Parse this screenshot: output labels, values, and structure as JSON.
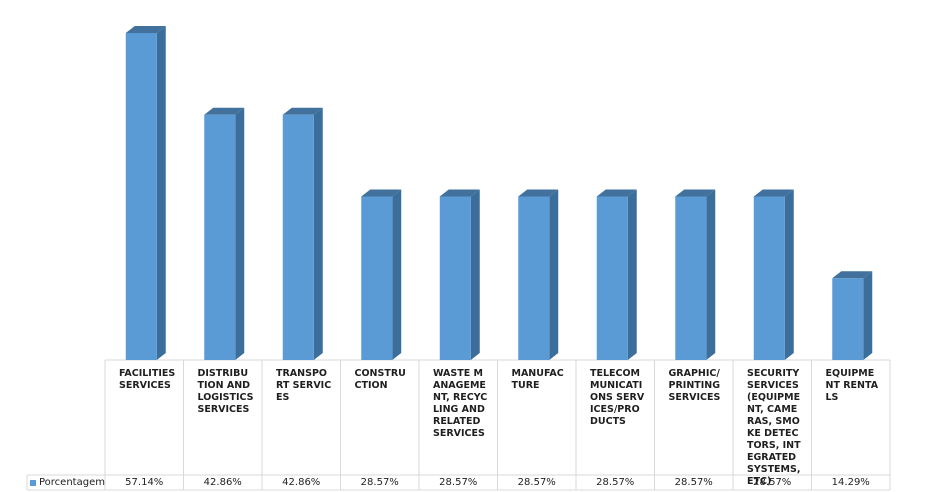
{
  "chart_data": {
    "type": "bar",
    "categories": [
      "FACILITIES SERVICES",
      "DISTRIBUTION AND LOGISTICS SERVICES",
      "TRANSPORT SERVICES",
      "CONSTRUCTION",
      "WASTE MANAGEMENT, RECYCLING AND RELATED SERVICES",
      "MANUFACTURE",
      "TELECOMMUNICATIONS SERVICES/PRODUCTS",
      "GRAPHIC/PRINTING SERVICES",
      "SECURITY SERVICES (EQUIPMENT, CAMERAS, SMOKE DETECTORS, INTEGRATED SYSTEMS, ETC)",
      "EQUIPMENT RENTALS"
    ],
    "series": [
      {
        "name": "Porcentagem",
        "values": [
          57.14,
          42.86,
          42.86,
          28.57,
          28.57,
          28.57,
          28.57,
          28.57,
          28.57,
          14.29
        ],
        "value_labels": [
          "57.14%",
          "42.86%",
          "42.86%",
          "28.57%",
          "28.57%",
          "28.57%",
          "28.57%",
          "28.57%",
          "28.57%",
          "14.29%"
        ]
      }
    ],
    "ylim": [
      0,
      60
    ],
    "grid": false,
    "legend_position": "bottom-left (data table)",
    "colors": {
      "bar_front": "#5b9bd5",
      "bar_side": "#3b6e9b",
      "bar_top": "#41719c",
      "table_lines": "#d9d9d9"
    }
  }
}
